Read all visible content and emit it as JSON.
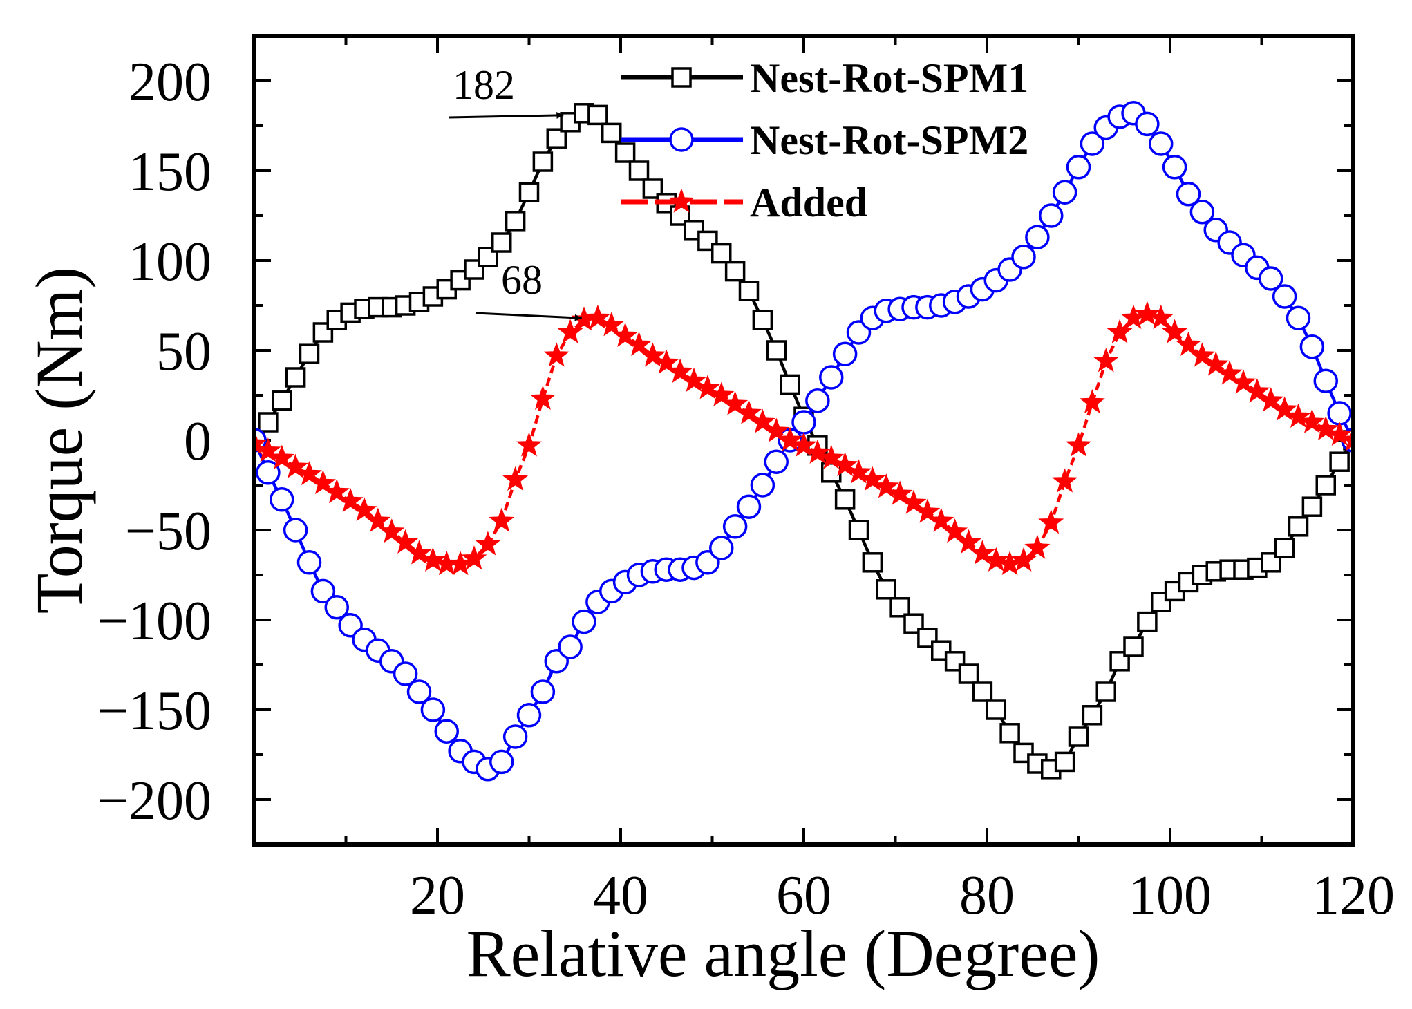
{
  "chart_data": {
    "type": "line",
    "title": "",
    "xlabel": "Relative angle (Degree)",
    "ylabel": "Torque (Nm)",
    "xlim": [
      0,
      120
    ],
    "ylim": [
      -225,
      225
    ],
    "xticks": [
      20,
      40,
      60,
      80,
      100,
      120
    ],
    "xtick_labels": [
      "20",
      "40",
      "60",
      "80",
      "100",
      "120"
    ],
    "yticks": [
      -200,
      -150,
      -100,
      -50,
      0,
      50,
      100,
      150,
      200
    ],
    "ytick_labels": [
      "−200",
      "−150",
      "−100",
      "−50",
      "0",
      "50",
      "100",
      "150",
      "200"
    ],
    "grid": false,
    "legend_position": "top-right",
    "annotations": [
      {
        "text": "182",
        "x": 33,
        "y": 182
      },
      {
        "text": "68",
        "x": 35,
        "y": 68
      }
    ],
    "series": [
      {
        "name": "Nest-Rot-SPM1",
        "color": "#000000",
        "marker": "square",
        "x": [
          0,
          1.5,
          3,
          4.5,
          6,
          7.5,
          9,
          10.5,
          12,
          13.5,
          15,
          16.5,
          18,
          19.5,
          21,
          22.5,
          24,
          25.5,
          27,
          28.5,
          30,
          31.5,
          33,
          34.5,
          36,
          37.5,
          39,
          40.5,
          42,
          43.5,
          45,
          46.5,
          48,
          49.5,
          51,
          52.5,
          54,
          55.5,
          57,
          58.5,
          60,
          61.5,
          63,
          64.5,
          66,
          67.5,
          69,
          70.5,
          72,
          73.5,
          75,
          76.5,
          78,
          79.5,
          81,
          82.5,
          84,
          85.5,
          87,
          88.5,
          90,
          91.5,
          93,
          94.5,
          96,
          97.5,
          99,
          100.5,
          102,
          103.5,
          105,
          106.5,
          108,
          109.5,
          111,
          112.5,
          114,
          115.5,
          117,
          118.5,
          120
        ],
        "y": [
          0,
          10,
          22,
          35,
          48,
          60,
          67,
          71,
          73,
          74,
          74,
          75,
          77,
          80,
          84,
          89,
          95,
          102,
          110,
          122,
          138,
          155,
          168,
          177,
          182,
          181,
          171,
          160,
          150,
          140,
          132,
          125,
          117,
          111,
          104,
          94,
          83,
          67,
          50,
          31,
          13,
          -3,
          -18,
          -33,
          -50,
          -68,
          -83,
          -93,
          -102,
          -110,
          -117,
          -123,
          -130,
          -140,
          -150,
          -163,
          -174,
          -180,
          -183,
          -179,
          -165,
          -153,
          -140,
          -123,
          -115,
          -101,
          -90,
          -84,
          -79,
          -75,
          -73,
          -72,
          -72,
          -71,
          -68,
          -60,
          -48,
          -37,
          -25,
          -12,
          0
        ]
      },
      {
        "name": "Nest-Rot-SPM2",
        "color": "#0000ff",
        "marker": "circle",
        "x": [
          0,
          1.5,
          3,
          4.5,
          6,
          7.5,
          9,
          10.5,
          12,
          13.5,
          15,
          16.5,
          18,
          19.5,
          21,
          22.5,
          24,
          25.5,
          27,
          28.5,
          30,
          31.5,
          33,
          34.5,
          36,
          37.5,
          39,
          40.5,
          42,
          43.5,
          45,
          46.5,
          48,
          49.5,
          51,
          52.5,
          54,
          55.5,
          57,
          58.5,
          60,
          61.5,
          63,
          64.5,
          66,
          67.5,
          69,
          70.5,
          72,
          73.5,
          75,
          76.5,
          78,
          79.5,
          81,
          82.5,
          84,
          85.5,
          87,
          88.5,
          90,
          91.5,
          93,
          94.5,
          96,
          97.5,
          99,
          100.5,
          102,
          103.5,
          105,
          106.5,
          108,
          109.5,
          111,
          112.5,
          114,
          115.5,
          117,
          118.5,
          120
        ],
        "y": [
          0,
          -18,
          -33,
          -50,
          -68,
          -84,
          -93,
          -103,
          -111,
          -117,
          -123,
          -130,
          -140,
          -150,
          -162,
          -173,
          -179,
          -183,
          -179,
          -165,
          -153,
          -140,
          -123,
          -115,
          -101,
          -90,
          -84,
          -79,
          -75,
          -73,
          -72,
          -72,
          -71,
          -68,
          -60,
          -48,
          -37,
          -25,
          -12,
          0,
          10,
          22,
          35,
          48,
          60,
          68,
          72,
          73,
          74,
          74,
          75,
          77,
          80,
          84,
          89,
          95,
          102,
          113,
          125,
          138,
          152,
          165,
          174,
          180,
          182,
          176,
          165,
          152,
          137,
          127,
          117,
          110,
          103,
          96,
          90,
          80,
          68,
          52,
          33,
          15,
          0
        ]
      },
      {
        "name": "Added",
        "color": "#ff0000",
        "marker": "star",
        "x": [
          0,
          1.5,
          3,
          4.5,
          6,
          7.5,
          9,
          10.5,
          12,
          13.5,
          15,
          16.5,
          18,
          19.5,
          21,
          22.5,
          24,
          25.5,
          27,
          28.5,
          30,
          31.5,
          33,
          34.5,
          36,
          37.5,
          39,
          40.5,
          42,
          43.5,
          45,
          46.5,
          48,
          49.5,
          51,
          52.5,
          54,
          55.5,
          57,
          58.5,
          60,
          61.5,
          63,
          64.5,
          66,
          67.5,
          69,
          70.5,
          72,
          73.5,
          75,
          76.5,
          78,
          79.5,
          81,
          82.5,
          84,
          85.5,
          87,
          88.5,
          90,
          91.5,
          93,
          94.5,
          96,
          97.5,
          99,
          100.5,
          102,
          103.5,
          105,
          106.5,
          108,
          109.5,
          111,
          112.5,
          114,
          115.5,
          117,
          118.5,
          120
        ],
        "y": [
          -2,
          -6,
          -10,
          -15,
          -19,
          -24,
          -29,
          -34,
          -39,
          -45,
          -51,
          -57,
          -63,
          -67,
          -69,
          -69,
          -66,
          -58,
          -45,
          -22,
          -3,
          23,
          47,
          60,
          67,
          68,
          64,
          58,
          53,
          47,
          43,
          38,
          33,
          29,
          25,
          20,
          15,
          10,
          5,
          0,
          -3,
          -7,
          -10,
          -14,
          -18,
          -22,
          -26,
          -30,
          -35,
          -40,
          -45,
          -51,
          -57,
          -63,
          -67,
          -69,
          -67,
          -60,
          -46,
          -23,
          -3,
          21,
          44,
          60,
          68,
          70,
          68,
          60,
          53,
          47,
          42,
          37,
          32,
          27,
          22,
          17,
          13,
          10,
          6,
          3,
          0
        ]
      }
    ]
  }
}
